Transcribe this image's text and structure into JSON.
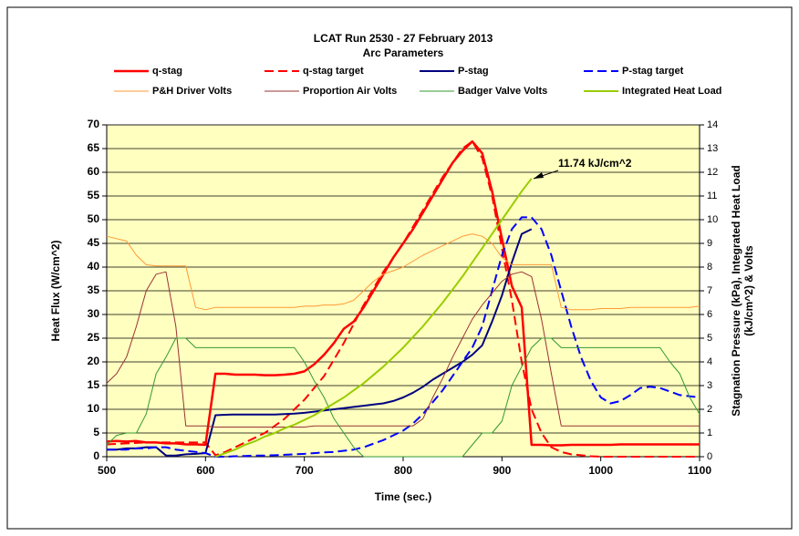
{
  "chart_data": {
    "type": "line",
    "title": "LCAT Run 2530 - 27 February 2013",
    "subtitle": "Arc Parameters",
    "xlabel": "Time (sec.)",
    "ylabel": "Heat Flux (W/cm^2)",
    "y2label": [
      "Stagnation Pressure (kPa), Integrated Heat Load",
      "(kJ/cm^2) & Volts"
    ],
    "annotation": "11.74 kJ/cm^2",
    "grid": true,
    "xlim": [
      500,
      1100
    ],
    "xticks": [
      500,
      600,
      700,
      800,
      900,
      1000,
      1100
    ],
    "ylim": [
      0,
      70
    ],
    "yticks": [
      0,
      5,
      10,
      15,
      20,
      25,
      30,
      35,
      40,
      45,
      50,
      55,
      60,
      65,
      70
    ],
    "y2lim": [
      0,
      14
    ],
    "y2ticks": [
      0,
      1,
      2,
      3,
      4,
      5,
      6,
      7,
      8,
      9,
      10,
      11,
      12,
      13,
      14
    ],
    "x": [
      500,
      510,
      520,
      530,
      540,
      550,
      560,
      570,
      580,
      590,
      600,
      610,
      620,
      630,
      640,
      650,
      660,
      670,
      680,
      690,
      700,
      710,
      720,
      730,
      740,
      750,
      760,
      770,
      780,
      790,
      800,
      810,
      820,
      830,
      840,
      850,
      860,
      870,
      880,
      890,
      900,
      910,
      920,
      930,
      940,
      950,
      960,
      970,
      980,
      990,
      1000,
      1010,
      1020,
      1030,
      1040,
      1050,
      1060,
      1070,
      1080,
      1090,
      1100
    ],
    "series": [
      {
        "name": "q-stag",
        "color": "#ff0000",
        "width": 2.5,
        "dashed": false,
        "values": [
          3.2,
          3.3,
          3.2,
          3.3,
          3.0,
          3.0,
          2.8,
          2.8,
          2.6,
          2.6,
          2.5,
          17.5,
          17.5,
          17.3,
          17.3,
          17.3,
          17.2,
          17.2,
          17.3,
          17.5,
          18,
          19.5,
          21.5,
          24,
          27,
          28.5,
          31.5,
          35,
          38.5,
          42,
          45,
          48,
          51.5,
          55,
          58.5,
          62,
          64.5,
          66.5,
          64,
          56,
          46,
          36,
          31.5,
          2.5,
          2.5,
          2.4,
          2.4,
          2.5,
          2.5,
          2.5,
          2.5,
          2.5,
          2.6,
          2.6,
          2.6,
          2.6,
          2.6,
          2.6,
          2.6,
          2.6,
          2.6
        ]
      },
      {
        "name": "q-stag target",
        "color": "#ff0000",
        "width": 2,
        "dashed": true,
        "values": [
          2.6,
          2.7,
          2.8,
          2.9,
          3.0,
          3.0,
          3.0,
          3.0,
          3.0,
          3.0,
          3.0,
          0.3,
          1,
          2,
          3,
          4,
          5,
          6.5,
          8,
          10,
          12,
          14.5,
          17,
          20.5,
          24,
          28,
          32,
          35.5,
          39,
          42,
          45,
          48.5,
          52,
          55.5,
          59,
          62,
          65,
          66.5,
          63,
          55,
          44,
          33,
          20,
          10,
          5,
          2,
          1,
          0.5,
          0.3,
          0.1,
          0,
          0,
          0,
          0,
          0,
          0,
          0,
          0,
          0,
          0,
          0
        ]
      },
      {
        "name": "P-stag",
        "color": "#000080",
        "width": 2,
        "dashed": false,
        "axis": "y2",
        "values": [
          0.3,
          0.3,
          0.35,
          0.35,
          0.4,
          0.4,
          0.05,
          0.05,
          0.1,
          0.12,
          0.15,
          1.75,
          1.77,
          1.78,
          1.78,
          1.78,
          1.78,
          1.78,
          1.8,
          1.82,
          1.85,
          1.9,
          1.95,
          2.0,
          2.05,
          2.1,
          2.15,
          2.2,
          2.25,
          2.35,
          2.5,
          2.7,
          2.95,
          3.25,
          3.5,
          3.75,
          4.0,
          4.3,
          4.7,
          5.7,
          6.8,
          8.2,
          9.4,
          9.6,
          null,
          null,
          null,
          null,
          null,
          null,
          null,
          null,
          null,
          null,
          null,
          null,
          null,
          null,
          null,
          null,
          null
        ]
      },
      {
        "name": "P-stag target",
        "color": "#0000ff",
        "width": 2,
        "dashed": true,
        "axis": "y2",
        "values": [
          0.3,
          0.3,
          0.3,
          0.35,
          0.35,
          0.4,
          0.4,
          0.3,
          0.25,
          0.2,
          0.15,
          0,
          0,
          0.02,
          0.03,
          0.05,
          0.05,
          0.06,
          0.08,
          0.1,
          0.12,
          0.15,
          0.18,
          0.2,
          0.25,
          0.3,
          0.4,
          0.55,
          0.7,
          0.9,
          1.1,
          1.4,
          1.8,
          2.3,
          2.8,
          3.4,
          4.0,
          4.6,
          5.5,
          7.0,
          8.5,
          9.6,
          10.1,
          10.1,
          9.6,
          8.5,
          7.0,
          5.5,
          4.2,
          3.2,
          2.5,
          2.25,
          2.35,
          2.6,
          2.9,
          2.95,
          2.9,
          2.75,
          2.6,
          2.55,
          2.5
        ]
      },
      {
        "name": "P&H Driver Volts",
        "color": "#ff9933",
        "width": 1,
        "dashed": false,
        "axis": "y2",
        "values": [
          9.3,
          9.2,
          9.1,
          8.5,
          8.1,
          8.05,
          8.05,
          8.05,
          8.05,
          6.3,
          6.2,
          6.3,
          6.3,
          6.3,
          6.3,
          6.3,
          6.3,
          6.3,
          6.3,
          6.3,
          6.35,
          6.35,
          6.4,
          6.4,
          6.45,
          6.6,
          7.0,
          7.4,
          7.7,
          7.85,
          8.0,
          8.25,
          8.5,
          8.7,
          8.9,
          9.1,
          9.3,
          9.4,
          9.3,
          9.0,
          8.4,
          8.1,
          8.1,
          8.1,
          8.1,
          8.1,
          6.3,
          6.2,
          6.2,
          6.2,
          6.25,
          6.25,
          6.25,
          6.3,
          6.3,
          6.3,
          6.3,
          6.3,
          6.3,
          6.3,
          6.35
        ]
      },
      {
        "name": "Proportion Air Volts",
        "color": "#993333",
        "width": 1,
        "dashed": false,
        "axis": "y2",
        "values": [
          3.1,
          3.5,
          4.2,
          5.5,
          7.0,
          7.7,
          7.8,
          5.5,
          1.3,
          1.3,
          1.3,
          1.25,
          1.25,
          1.25,
          1.25,
          1.25,
          1.25,
          1.25,
          1.25,
          1.25,
          1.25,
          1.3,
          1.3,
          1.3,
          1.3,
          1.3,
          1.3,
          1.3,
          1.3,
          1.3,
          1.3,
          1.3,
          1.6,
          2.5,
          3.3,
          4.2,
          5.0,
          5.8,
          6.4,
          6.9,
          7.4,
          7.7,
          7.8,
          7.6,
          5.8,
          3.5,
          1.3,
          1.3,
          1.3,
          1.3,
          1.3,
          1.3,
          1.3,
          1.3,
          1.3,
          1.3,
          1.3,
          1.3,
          1.3,
          1.3,
          1.3
        ]
      },
      {
        "name": "Badger Valve Volts",
        "color": "#339933",
        "width": 1,
        "dashed": false,
        "axis": "y2",
        "values": [
          0.5,
          0.9,
          1.0,
          1.0,
          1.8,
          3.5,
          4.2,
          5.0,
          5.0,
          4.6,
          4.6,
          4.6,
          4.6,
          4.6,
          4.6,
          4.6,
          4.6,
          4.6,
          4.6,
          4.6,
          4.0,
          3.2,
          2.5,
          1.6,
          1.0,
          0.4,
          0,
          0,
          0,
          0,
          0,
          0,
          0,
          0,
          0,
          0,
          0,
          0.5,
          1.0,
          1.0,
          1.5,
          3.0,
          3.8,
          4.6,
          5.0,
          5.0,
          4.6,
          4.6,
          4.6,
          4.6,
          4.6,
          4.6,
          4.6,
          4.6,
          4.6,
          4.6,
          4.6,
          4.0,
          3.5,
          2.5,
          1.8
        ]
      },
      {
        "name": "Integrated Heat Load",
        "color": "#99cc00",
        "width": 2,
        "dashed": false,
        "axis": "y2",
        "values": [
          null,
          null,
          null,
          null,
          null,
          null,
          null,
          null,
          null,
          null,
          null,
          0,
          0.15,
          0.3,
          0.5,
          0.65,
          0.85,
          1.0,
          1.2,
          1.35,
          1.55,
          1.75,
          2.0,
          2.25,
          2.5,
          2.8,
          3.1,
          3.45,
          3.8,
          4.2,
          4.6,
          5.05,
          5.5,
          6.0,
          6.5,
          7.05,
          7.6,
          8.2,
          8.8,
          9.4,
          10.0,
          10.6,
          11.2,
          11.74,
          null,
          null,
          null,
          null,
          null,
          null,
          null,
          null,
          null,
          null,
          null,
          null,
          null,
          null,
          null,
          null,
          null
        ]
      }
    ]
  }
}
